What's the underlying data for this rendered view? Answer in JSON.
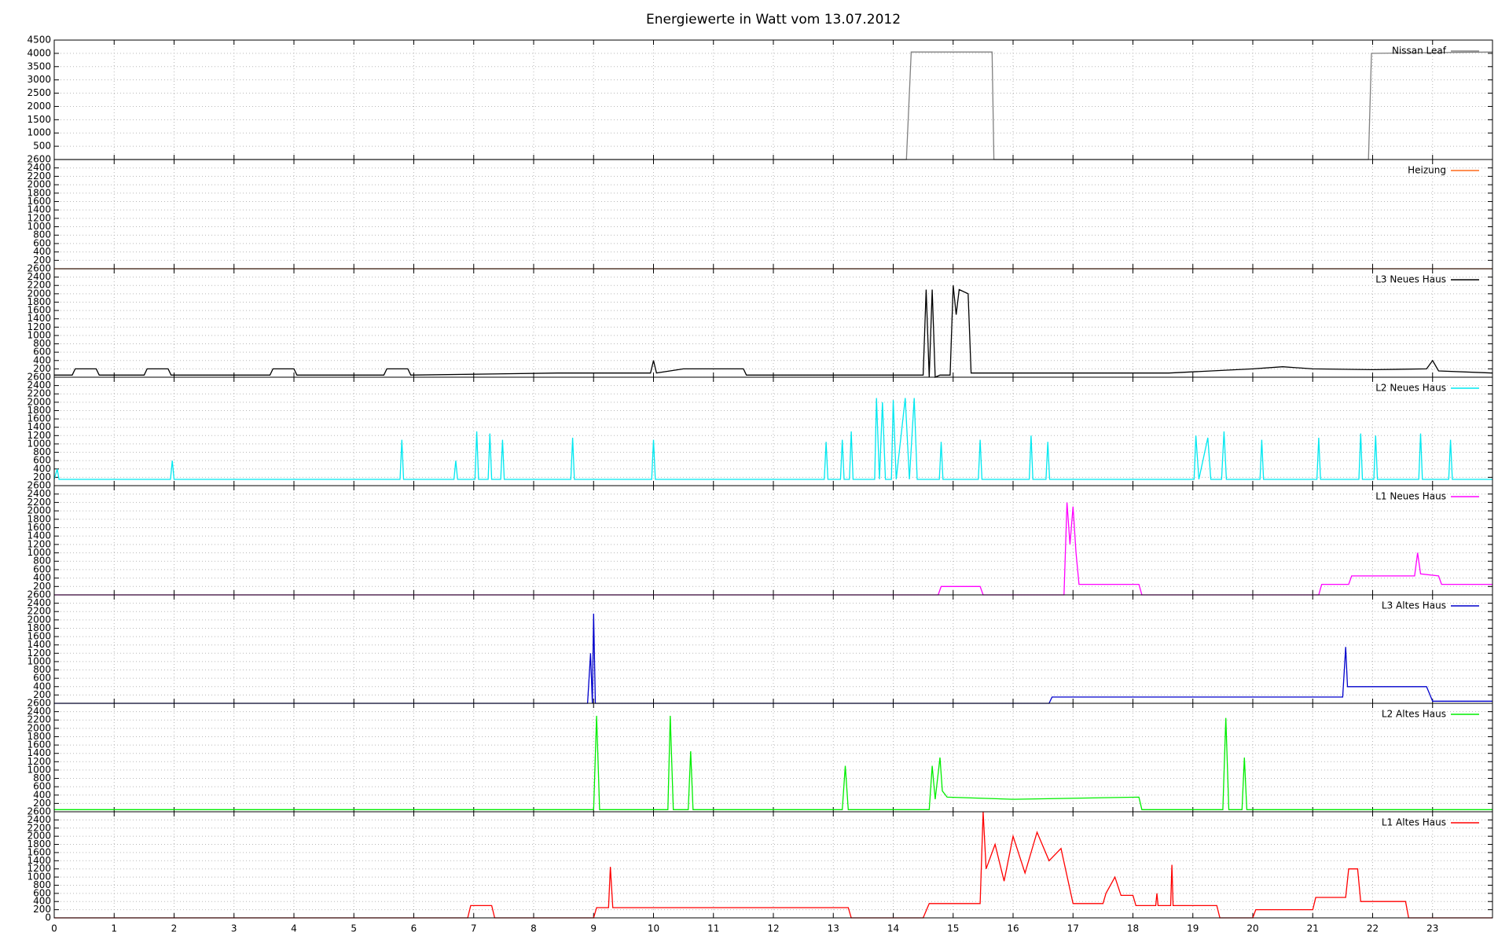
{
  "chart_data": [
    {
      "type": "line",
      "title": "Energiewerte in Watt vom 13.07.2012",
      "legend": "upper right",
      "grid": true,
      "xlim": [
        0,
        24
      ],
      "ylim": [
        0,
        4500
      ],
      "yticks": [
        500,
        1000,
        1500,
        2000,
        2500,
        3000,
        3500,
        4000,
        4500
      ],
      "series": [
        {
          "name": "Nissan Leaf",
          "color": "#808080",
          "x": [
            0,
            14.22,
            14.3,
            15.65,
            15.68,
            21.93,
            21.98,
            24
          ],
          "values": [
            0,
            0,
            4050,
            4050,
            0,
            0,
            4000,
            4050
          ]
        }
      ]
    },
    {
      "type": "line",
      "legend": "upper right",
      "grid": true,
      "xlim": [
        0,
        24
      ],
      "ylim": [
        0,
        2600
      ],
      "yticks": [
        200,
        400,
        600,
        800,
        1000,
        1200,
        1400,
        1600,
        1800,
        2000,
        2200,
        2400,
        2600
      ],
      "series": [
        {
          "name": "Heizung",
          "color": "#ff6a1a",
          "x": [
            0,
            24
          ],
          "values": [
            0,
            0
          ]
        }
      ]
    },
    {
      "type": "line",
      "legend": "upper right",
      "grid": true,
      "xlim": [
        0,
        24
      ],
      "ylim": [
        0,
        2600
      ],
      "yticks": [
        200,
        400,
        600,
        800,
        1000,
        1200,
        1400,
        1600,
        1800,
        2000,
        2200,
        2400,
        2600
      ],
      "series": [
        {
          "name": "L3 Neues Haus",
          "color": "#000000",
          "x": [
            0,
            0.3,
            0.35,
            0.7,
            0.75,
            1.5,
            1.55,
            1.9,
            1.95,
            3.6,
            3.65,
            4.0,
            4.05,
            5.5,
            5.55,
            5.9,
            5.95,
            8.4,
            9.5,
            9.95,
            10.0,
            10.05,
            10.5,
            11.5,
            11.55,
            14.5,
            14.55,
            14.6,
            14.65,
            14.7,
            14.78,
            14.95,
            15.0,
            15.05,
            15.1,
            15.25,
            15.3,
            18.6,
            20.0,
            20.5,
            21.0,
            22.0,
            22.9,
            23.0,
            23.1,
            24
          ],
          "values": [
            50,
            50,
            200,
            200,
            50,
            50,
            200,
            200,
            50,
            50,
            200,
            200,
            50,
            50,
            200,
            200,
            50,
            100,
            100,
            100,
            400,
            100,
            200,
            200,
            50,
            50,
            2100,
            0,
            2100,
            0,
            50,
            50,
            2200,
            1500,
            2100,
            2000,
            100,
            100,
            200,
            250,
            200,
            180,
            200,
            400,
            150,
            100
          ]
        }
      ]
    },
    {
      "type": "line",
      "legend": "upper right",
      "grid": true,
      "xlim": [
        0,
        24
      ],
      "ylim": [
        0,
        2600
      ],
      "yticks": [
        200,
        400,
        600,
        800,
        1000,
        1200,
        1400,
        1600,
        1800,
        2000,
        2200,
        2400,
        2600
      ],
      "series": [
        {
          "name": "L2 Neues Haus",
          "color": "#00e8f0",
          "x": [
            0,
            0.05,
            0.08,
            1.94,
            1.97,
            2.0,
            5.77,
            5.8,
            5.83,
            6.67,
            6.7,
            6.73,
            7.02,
            7.05,
            7.08,
            7.24,
            7.27,
            7.3,
            7.45,
            7.48,
            7.51,
            8.62,
            8.65,
            8.68,
            9.97,
            10.0,
            10.03,
            12.85,
            12.88,
            12.91,
            13.12,
            13.15,
            13.18,
            13.27,
            13.3,
            13.33,
            13.69,
            13.72,
            13.77,
            13.82,
            13.87,
            13.97,
            14.0,
            14.05,
            14.2,
            14.27,
            14.35,
            14.4,
            14.77,
            14.8,
            14.83,
            15.42,
            15.45,
            15.48,
            16.27,
            16.3,
            16.33,
            16.55,
            16.58,
            16.61,
            19.02,
            19.05,
            19.1,
            19.25,
            19.3,
            19.48,
            19.52,
            19.56,
            20.12,
            20.15,
            20.18,
            21.07,
            21.1,
            21.13,
            21.77,
            21.8,
            21.83,
            22.02,
            22.05,
            22.08,
            22.77,
            22.8,
            22.83,
            23.27,
            23.3,
            23.33,
            24
          ],
          "values": [
            150,
            400,
            150,
            150,
            600,
            150,
            150,
            1100,
            150,
            150,
            600,
            150,
            150,
            1300,
            150,
            150,
            1250,
            150,
            150,
            1100,
            150,
            150,
            1150,
            150,
            150,
            1100,
            150,
            150,
            1050,
            150,
            150,
            1100,
            150,
            150,
            1300,
            150,
            150,
            2100,
            150,
            2000,
            150,
            150,
            2050,
            150,
            2100,
            150,
            2100,
            150,
            150,
            1050,
            150,
            150,
            1100,
            150,
            150,
            1200,
            150,
            150,
            1050,
            150,
            150,
            1200,
            150,
            1150,
            150,
            150,
            1300,
            150,
            150,
            1100,
            150,
            150,
            1150,
            150,
            150,
            1250,
            150,
            150,
            1200,
            150,
            150,
            1250,
            150,
            150,
            1100,
            150,
            150
          ]
        }
      ]
    },
    {
      "type": "line",
      "legend": "upper right",
      "grid": true,
      "xlim": [
        0,
        24
      ],
      "ylim": [
        0,
        2600
      ],
      "yticks": [
        200,
        400,
        600,
        800,
        1000,
        1200,
        1400,
        1600,
        1800,
        2000,
        2200,
        2400,
        2600
      ],
      "series": [
        {
          "name": "L1 Neues Haus",
          "color": "#ff00ff",
          "x": [
            0,
            14.75,
            14.8,
            15.45,
            15.5,
            16.85,
            16.9,
            16.95,
            17.0,
            17.05,
            17.1,
            18.1,
            18.15,
            21.1,
            21.15,
            21.6,
            21.65,
            22.7,
            22.75,
            22.8,
            23.1,
            23.15,
            24
          ],
          "values": [
            0,
            0,
            200,
            200,
            0,
            0,
            2200,
            1200,
            2100,
            1000,
            250,
            250,
            0,
            0,
            250,
            250,
            450,
            450,
            1000,
            500,
            450,
            250,
            250
          ]
        }
      ]
    },
    {
      "type": "line",
      "legend": "upper right",
      "grid": true,
      "xlim": [
        0,
        24
      ],
      "ylim": [
        0,
        2600
      ],
      "yticks": [
        200,
        400,
        600,
        800,
        1000,
        1200,
        1400,
        1600,
        1800,
        2000,
        2200,
        2400,
        2600
      ],
      "series": [
        {
          "name": "L3 Altes Haus",
          "color": "#0000cc",
          "x": [
            0,
            8.9,
            8.95,
            8.98,
            9.0,
            9.03,
            9.08,
            16.6,
            16.65,
            21.5,
            21.55,
            21.58,
            21.62,
            22.9,
            23.0,
            24
          ],
          "values": [
            0,
            0,
            1200,
            0,
            2150,
            0,
            0,
            0,
            150,
            150,
            1350,
            400,
            400,
            400,
            50,
            50
          ]
        }
      ]
    },
    {
      "type": "line",
      "legend": "upper right",
      "grid": true,
      "xlim": [
        0,
        24
      ],
      "ylim": [
        0,
        2600
      ],
      "yticks": [
        200,
        400,
        600,
        800,
        1000,
        1200,
        1400,
        1600,
        1800,
        2000,
        2200,
        2400,
        2600
      ],
      "series": [
        {
          "name": "L2 Altes Haus",
          "color": "#00ee00",
          "x": [
            0,
            9.0,
            9.05,
            9.1,
            10.24,
            10.28,
            10.33,
            10.58,
            10.62,
            10.66,
            13.15,
            13.2,
            13.25,
            14.6,
            14.65,
            14.7,
            14.78,
            14.82,
            14.9,
            16.0,
            18.1,
            18.15,
            19.5,
            19.55,
            19.6,
            19.82,
            19.86,
            19.9,
            24
          ],
          "values": [
            50,
            50,
            2300,
            50,
            50,
            2300,
            50,
            50,
            1450,
            50,
            50,
            1100,
            50,
            50,
            1100,
            300,
            1300,
            500,
            350,
            300,
            350,
            50,
            50,
            2250,
            50,
            50,
            1300,
            50,
            50
          ]
        }
      ]
    },
    {
      "type": "line",
      "legend": "upper right",
      "grid": true,
      "xlim": [
        0,
        24
      ],
      "ylim": [
        0,
        2600
      ],
      "yticks": [
        0,
        200,
        400,
        600,
        800,
        1000,
        1200,
        1400,
        1600,
        1800,
        2000,
        2200,
        2400,
        2600
      ],
      "xticks": [
        0,
        1,
        2,
        3,
        4,
        5,
        6,
        7,
        8,
        9,
        10,
        11,
        12,
        13,
        14,
        15,
        16,
        17,
        18,
        19,
        20,
        21,
        22,
        23
      ],
      "series": [
        {
          "name": "L1 Altes Haus",
          "color": "#ff0000",
          "x": [
            0,
            6.9,
            6.95,
            7.3,
            7.35,
            9.0,
            9.05,
            9.25,
            9.28,
            9.32,
            13.25,
            13.3,
            14.5,
            14.6,
            15.45,
            15.5,
            15.55,
            15.7,
            15.85,
            16.0,
            16.2,
            16.4,
            16.6,
            16.8,
            17.0,
            17.05,
            17.5,
            17.55,
            17.7,
            17.8,
            18.0,
            18.05,
            18.38,
            18.4,
            18.42,
            18.63,
            18.65,
            18.67,
            19.4,
            19.45,
            20.0,
            20.05,
            21.0,
            21.05,
            21.55,
            21.6,
            21.75,
            21.8,
            22.55,
            22.6,
            24
          ],
          "values": [
            0,
            0,
            300,
            300,
            0,
            0,
            250,
            250,
            1250,
            250,
            250,
            0,
            0,
            350,
            350,
            2600,
            1200,
            1800,
            900,
            2000,
            1100,
            2100,
            1400,
            1700,
            350,
            350,
            350,
            600,
            1000,
            550,
            550,
            300,
            300,
            600,
            300,
            300,
            1300,
            300,
            300,
            0,
            0,
            200,
            200,
            500,
            500,
            1200,
            1200,
            400,
            400,
            0,
            0
          ]
        }
      ]
    }
  ]
}
